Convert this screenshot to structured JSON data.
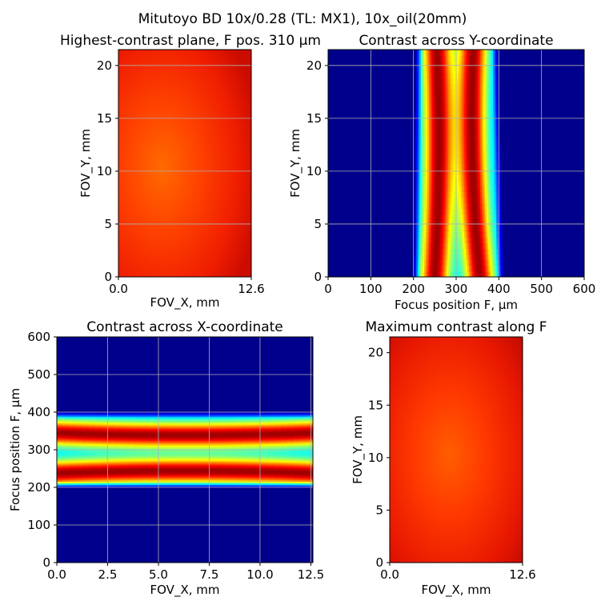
{
  "figure": {
    "suptitle": "Mitutoyo BD 10x/0.28 (TL: MX1), 10x_oil(20mm)"
  },
  "chart_data": [
    {
      "id": "p1",
      "type": "heatmap",
      "title": "Highest-contrast plane, F pos. 310 μm",
      "xlabel": "FOV_X, mm",
      "ylabel": "FOV_Y, mm",
      "xlim": [
        0,
        12.6
      ],
      "ylim": [
        0,
        21.5
      ],
      "xticks": [
        0,
        12.6
      ],
      "xtick_labels": [
        "0.0",
        "12.6"
      ],
      "yticks": [
        0,
        5,
        10,
        15,
        20
      ],
      "ytick_labels": [
        "0",
        "5",
        "10",
        "15",
        "20"
      ],
      "grid": true,
      "colormap": "jet",
      "description_values": {
        "center_x": 5.5,
        "center_y": 10.5,
        "center_level": 0.8,
        "edge_level": 0.93
      }
    },
    {
      "id": "p2",
      "type": "heatmap",
      "title": "Contrast across Y-coordinate",
      "xlabel": "Focus position F, μm",
      "ylabel": "FOV_Y, mm",
      "xlim": [
        0,
        600
      ],
      "ylim": [
        0,
        21.5
      ],
      "xticks": [
        0,
        100,
        200,
        300,
        400,
        500,
        600
      ],
      "xtick_labels": [
        "0",
        "100",
        "200",
        "300",
        "400",
        "500",
        "600"
      ],
      "yticks": [
        0,
        5,
        10,
        15,
        20
      ],
      "ytick_labels": [
        "0",
        "5",
        "10",
        "15",
        "20"
      ],
      "grid": true,
      "colormap": "jet",
      "bands": [
        {
          "center_at_y0": 250,
          "center_at_mid": 265,
          "center_at_top": 255,
          "width": 35
        },
        {
          "center_at_y0": 355,
          "center_at_mid": 330,
          "center_at_top": 340,
          "width": 35
        }
      ],
      "support_range": [
        200,
        410
      ]
    },
    {
      "id": "p3",
      "type": "heatmap",
      "title": "Contrast across X-coordinate",
      "xlabel": "FOV_X, mm",
      "ylabel": "Focus position F, μm",
      "xlim": [
        0,
        12.6
      ],
      "ylim": [
        0,
        600
      ],
      "xticks": [
        0,
        2.5,
        5,
        7.5,
        10,
        12.5
      ],
      "xtick_labels": [
        "0.0",
        "2.5",
        "5.0",
        "7.5",
        "10.0",
        "12.5"
      ],
      "yticks": [
        0,
        100,
        200,
        300,
        400,
        500,
        600
      ],
      "ytick_labels": [
        "0",
        "100",
        "200",
        "300",
        "400",
        "500",
        "600"
      ],
      "grid": true,
      "colormap": "jet",
      "bands": [
        {
          "center": 245,
          "width": 35
        },
        {
          "center": 340,
          "width": 35
        }
      ],
      "support_range": [
        200,
        400
      ]
    },
    {
      "id": "p4",
      "type": "heatmap",
      "title": "Maximum contrast along F",
      "xlabel": "FOV_X, mm",
      "ylabel": "FOV_Y, mm",
      "xlim": [
        0,
        12.6
      ],
      "ylim": [
        0,
        21.5
      ],
      "xticks": [
        0,
        12.6
      ],
      "xtick_labels": [
        "0.0",
        "12.6"
      ],
      "yticks": [
        0,
        5,
        10,
        15,
        20
      ],
      "ytick_labels": [
        "0",
        "5",
        "10",
        "15",
        "20"
      ],
      "grid": false,
      "colormap": "jet",
      "description_values": {
        "center_x": 5.5,
        "center_y": 10.5,
        "center_level": 0.8,
        "edge_level": 0.93
      }
    }
  ]
}
